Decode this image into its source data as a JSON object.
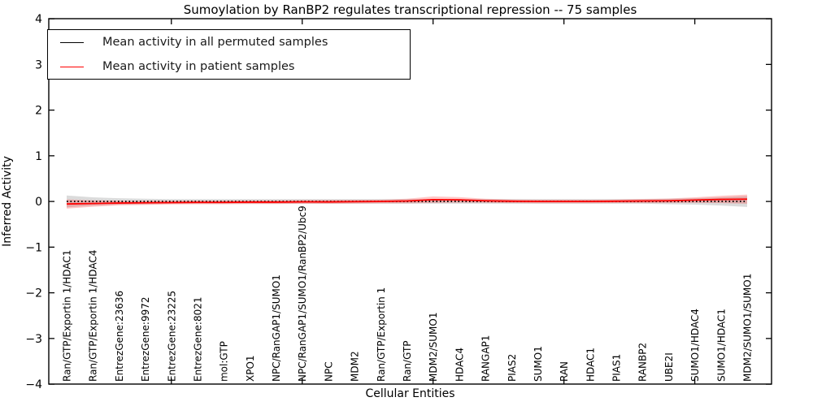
{
  "figure": {
    "title": "Sumoylation by RanBP2 regulates transcriptional repression -- 75 samples",
    "xlabel": "Cellular Entities",
    "ylabel": "Inferred Activity"
  },
  "legend": {
    "position": "upper left",
    "items": [
      {
        "label": "Mean activity in all permuted samples",
        "color": "#000000"
      },
      {
        "label": "Mean activity in patient samples",
        "color": "#ff0000"
      }
    ]
  },
  "chart_data": {
    "type": "line",
    "title": "Sumoylation by RanBP2 regulates transcriptional repression -- 75 samples",
    "xlabel": "Cellular Entities",
    "ylabel": "Inferred Activity",
    "ylim": [
      -4,
      4
    ],
    "yticks": [
      -4,
      -3,
      -2,
      -1,
      0,
      1,
      2,
      3,
      4
    ],
    "xtick_marks_at_category_index": [
      4,
      9,
      14,
      19,
      24
    ],
    "grid": false,
    "legend_position": "upper left",
    "categories": [
      "Ran/GTP/Exportin 1/HDAC1",
      "Ran/GTP/Exportin 1/HDAC4",
      "EntrezGene:23636",
      "EntrezGene:9972",
      "EntrezGene:23225",
      "EntrezGene:8021",
      "mol:GTP",
      "XPO1",
      "NPC/RanGAP1/SUMO1",
      "NPC/RanGAP1/SUMO1/RanBP2/Ubc9",
      "NPC",
      "MDM2",
      "Ran/GTP/Exportin 1",
      "Ran/GTP",
      "MDM2/SUMO1",
      "HDAC4",
      "RANGAP1",
      "PIAS2",
      "SUMO1",
      "RAN",
      "HDAC1",
      "PIAS1",
      "RANBP2",
      "UBE2I",
      "SUMO1/HDAC4",
      "SUMO1/HDAC1",
      "MDM2/SUMO1/SUMO1"
    ],
    "series": [
      {
        "name": "Mean activity in all permuted samples",
        "color": "#000000",
        "line_style": "dotted",
        "values": [
          0,
          0,
          0,
          0,
          0,
          0,
          0,
          0,
          0,
          0,
          0,
          0,
          0,
          0,
          0,
          0,
          0,
          0,
          0,
          0,
          0,
          0,
          0,
          0,
          0,
          0,
          0
        ],
        "band_halfwidth": [
          0.13,
          0.09,
          0.07,
          0.06,
          0.05,
          0.05,
          0.05,
          0.05,
          0.05,
          0.05,
          0.05,
          0.05,
          0.05,
          0.05,
          0.05,
          0.05,
          0.05,
          0.05,
          0.05,
          0.05,
          0.05,
          0.05,
          0.05,
          0.06,
          0.07,
          0.09,
          0.12
        ]
      },
      {
        "name": "Mean activity in patient samples",
        "color": "#ff0000",
        "line_style": "solid",
        "values": [
          -0.055,
          -0.045,
          -0.035,
          -0.03,
          -0.025,
          -0.02,
          -0.02,
          -0.015,
          -0.015,
          -0.01,
          -0.01,
          -0.005,
          0.0,
          0.01,
          0.04,
          0.035,
          0.015,
          0.005,
          0.0,
          0.0,
          0.0,
          0.005,
          0.01,
          0.015,
          0.03,
          0.045,
          0.05
        ],
        "band_halfwidth": [
          0.1,
          0.07,
          0.05,
          0.045,
          0.04,
          0.04,
          0.04,
          0.04,
          0.04,
          0.04,
          0.04,
          0.04,
          0.04,
          0.05,
          0.07,
          0.06,
          0.045,
          0.04,
          0.04,
          0.04,
          0.04,
          0.04,
          0.045,
          0.05,
          0.06,
          0.08,
          0.1
        ]
      }
    ]
  }
}
